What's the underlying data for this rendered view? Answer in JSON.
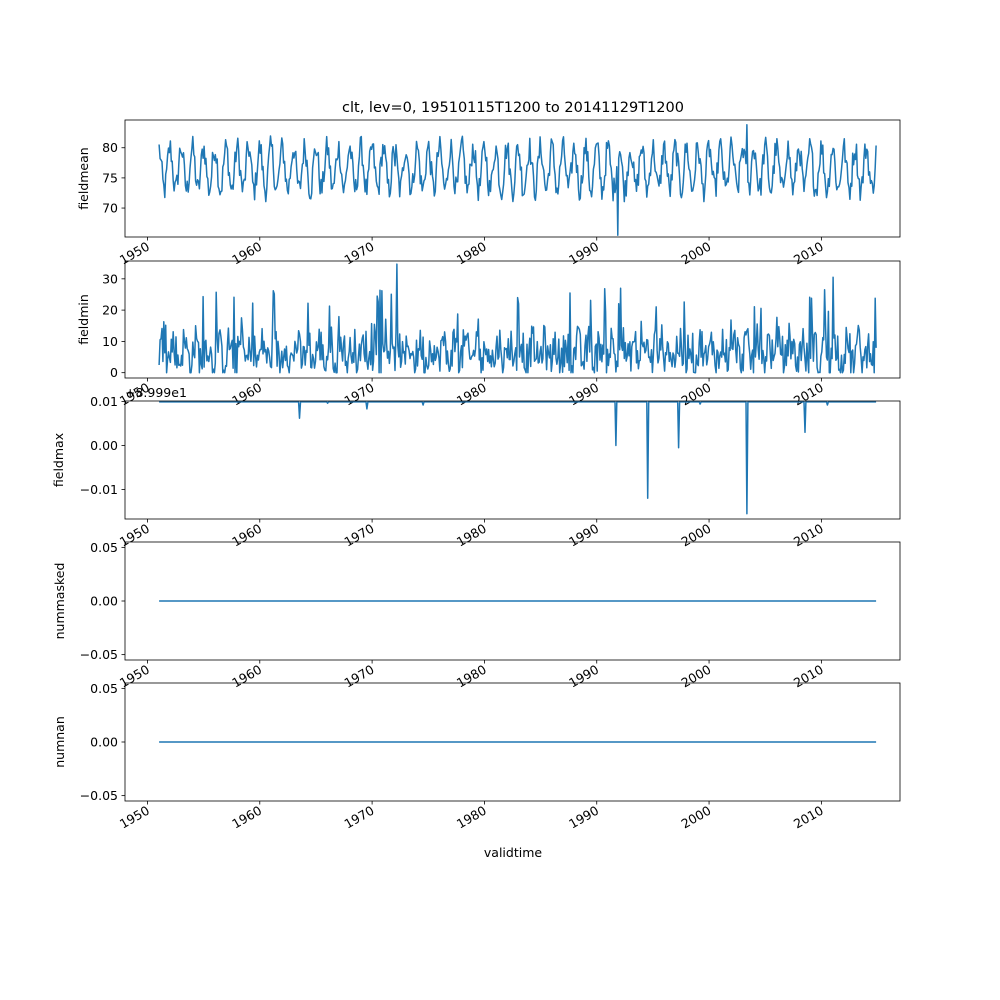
{
  "figure": {
    "title": "clt, lev=0, 19510115T1200 to 20141129T1200",
    "xlabel": "validtime"
  },
  "colors": {
    "line": "#1f77b4",
    "axes": "#000000",
    "background": "#ffffff"
  },
  "chart_data": [
    {
      "type": "line",
      "ylabel": "fieldmean",
      "offset_text": "",
      "xlim": [
        1948.0,
        2017.0
      ],
      "ylim": [
        65.2,
        84.6
      ],
      "xticks": [
        "1950",
        "1960",
        "1970",
        "1980",
        "1990",
        "2000",
        "2010"
      ],
      "yticks": [
        "70",
        "75",
        "80"
      ],
      "series": [
        {
          "x_range": [
            1951.04,
            2014.91
          ],
          "generator": "seasonal",
          "mean": 76.5,
          "amp": 3.5,
          "noise": 1.6,
          "anchors": [
            [
              1991.9,
              65.5
            ],
            [
              2003.4,
              83.8
            ],
            [
              1972.0,
              77.0
            ]
          ]
        }
      ]
    },
    {
      "type": "line",
      "ylabel": "fieldmin",
      "offset_text": "",
      "xlim": [
        1948.0,
        2017.0
      ],
      "ylim": [
        -1.7,
        35.7
      ],
      "xticks": [
        "1950",
        "1960",
        "1970",
        "1980",
        "1990",
        "2000",
        "2010"
      ],
      "yticks": [
        "0",
        "10",
        "20",
        "30"
      ],
      "series": [
        {
          "x_range": [
            1951.04,
            2014.91
          ],
          "generator": "spiky",
          "base": 6.5,
          "spread": 6.0,
          "spike_prob": 0.06,
          "spike_max": 27,
          "anchors": [
            [
              1972.2,
              34.7
            ],
            [
              2011.0,
              30.5
            ],
            [
              1992.1,
              27.0
            ],
            [
              2010.3,
              26.5
            ]
          ]
        }
      ]
    },
    {
      "type": "line",
      "ylabel": "fieldmax",
      "offset_text": "+8.999e1",
      "xlim": [
        1948.0,
        2017.0
      ],
      "ylim": [
        -0.0167,
        0.0101
      ],
      "xticks": [
        "1950",
        "1960",
        "1970",
        "1980",
        "1990",
        "2000",
        "2010"
      ],
      "yticks": [
        "0.01",
        "0.00",
        "−0.01"
      ],
      "series": [
        {
          "x_range": [
            1951.04,
            2014.91
          ],
          "generator": "flat_dips",
          "level": 0.0099,
          "dips": [
            [
              1963.5,
              0.0062
            ],
            [
              1969.5,
              0.0083
            ],
            [
              1991.7,
              0.0
            ],
            [
              1994.5,
              -0.012
            ],
            [
              1997.3,
              -0.0005
            ],
            [
              2003.4,
              -0.0155
            ],
            [
              2008.5,
              0.003
            ],
            [
              1974.5,
              0.0092
            ],
            [
              1999.2,
              0.0094
            ],
            [
              2010.5,
              0.0092
            ],
            [
              1966.0,
              0.0096
            ]
          ]
        }
      ]
    },
    {
      "type": "line",
      "ylabel": "nummasked",
      "offset_text": "",
      "xlim": [
        1948.0,
        2017.0
      ],
      "ylim": [
        -0.055,
        0.055
      ],
      "xticks": [
        "1950",
        "1960",
        "1970",
        "1980",
        "1990",
        "2000",
        "2010"
      ],
      "yticks": [
        "0.05",
        "0.00",
        "−0.05"
      ],
      "series": [
        {
          "x_range": [
            1951.04,
            2014.91
          ],
          "generator": "constant",
          "level": 0.0
        }
      ]
    },
    {
      "type": "line",
      "ylabel": "numnan",
      "offset_text": "",
      "xlim": [
        1948.0,
        2017.0
      ],
      "ylim": [
        -0.055,
        0.055
      ],
      "xticks": [
        "1950",
        "1960",
        "1970",
        "1980",
        "1990",
        "2000",
        "2010"
      ],
      "yticks": [
        "0.05",
        "0.00",
        "−0.05"
      ],
      "series": [
        {
          "x_range": [
            1951.04,
            2014.91
          ],
          "generator": "constant",
          "level": 0.0
        }
      ]
    }
  ]
}
